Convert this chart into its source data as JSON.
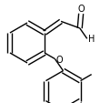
{
  "bg_color": "#ffffff",
  "line_color": "#000000",
  "lw": 1.0,
  "lw_double_inner": 0.9,
  "figsize": [
    1.1,
    1.14
  ],
  "dpi": 100,
  "xlim": [
    0,
    110
  ],
  "ylim": [
    0,
    114
  ]
}
